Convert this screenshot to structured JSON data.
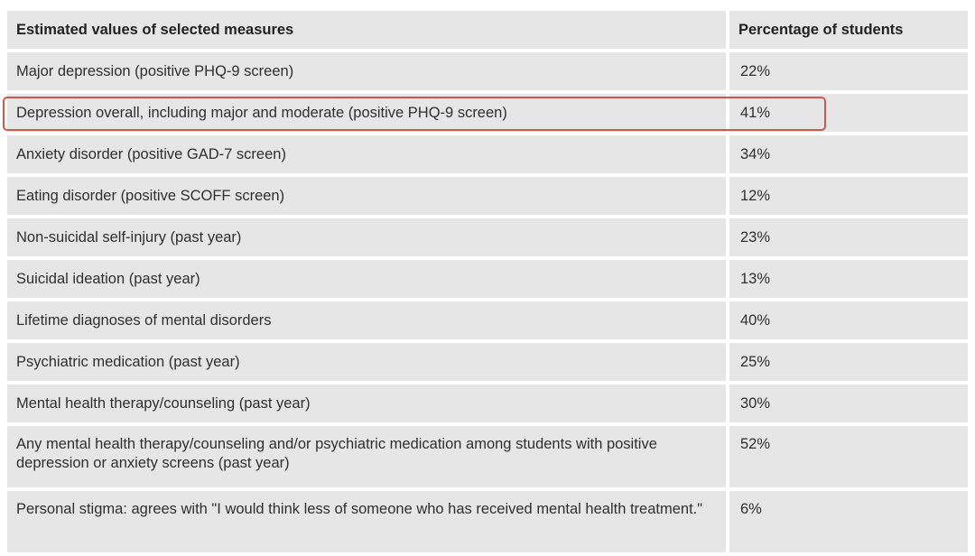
{
  "table": {
    "headers": {
      "measure": "Estimated values of selected measures",
      "percentage": "Percentage of students"
    },
    "rows": [
      {
        "measure": "Major depression (positive PHQ-9 screen)",
        "percentage": "22%"
      },
      {
        "measure": "Depression overall, including major and moderate (positive PHQ-9 screen)",
        "percentage": "41%"
      },
      {
        "measure": "Anxiety disorder (positive GAD-7 screen)",
        "percentage": "34%"
      },
      {
        "measure": "Eating disorder (positive SCOFF screen)",
        "percentage": "12%"
      },
      {
        "measure": "Non-suicidal self-injury (past year)",
        "percentage": "23%"
      },
      {
        "measure": "Suicidal ideation (past year)",
        "percentage": "13%"
      },
      {
        "measure": "Lifetime diagnoses of mental disorders",
        "percentage": "40%"
      },
      {
        "measure": "Psychiatric medication (past year)",
        "percentage": "25%"
      },
      {
        "measure": "Mental health therapy/counseling (past year)",
        "percentage": "30%"
      },
      {
        "measure": "Any mental health therapy/counseling and/or psychiatric medication among students with positive depression or anxiety screens (past year)",
        "percentage": "52%"
      },
      {
        "measure": "Personal stigma: agrees with \"I would think less of someone who has received mental health treatment.\"",
        "percentage": "6%"
      }
    ],
    "highlighted_row": 1
  },
  "colors": {
    "cell_background": "#e6e6e6",
    "highlight_border": "#d0574b"
  }
}
